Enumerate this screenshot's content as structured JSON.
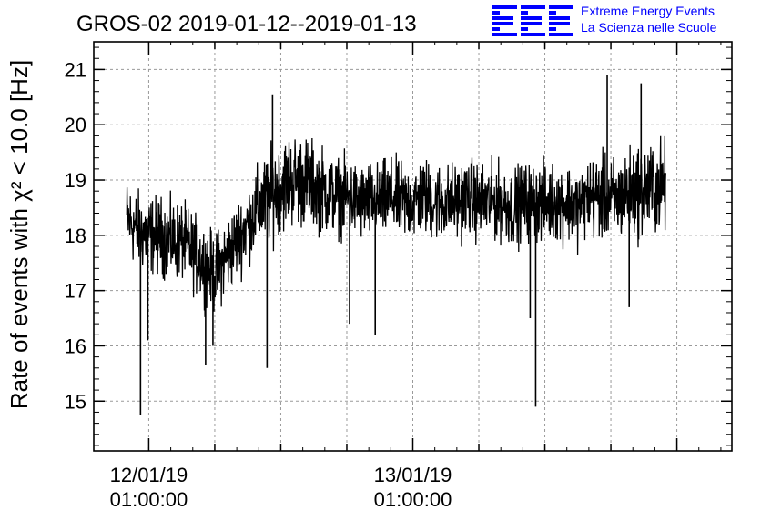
{
  "logo": {
    "mark": "EEE",
    "line1": "Extreme Energy Events",
    "line2": "La Scienza nelle Scuole",
    "color": "#0000ff"
  },
  "chart_data": {
    "type": "line",
    "title": "GROS-02 2019-01-12--2019-01-13",
    "xlabel": "",
    "ylabel": "Rate of events with χ² < 10.0 [Hz]",
    "xlim": [
      "2019-01-11 20:00",
      "2019-01-14 06:00"
    ],
    "ylim": [
      14.1,
      21.5
    ],
    "y_ticks": [
      15,
      16,
      17,
      18,
      19,
      20,
      21
    ],
    "x_ticks": [
      {
        "x": "2019-01-12 01:00",
        "label_date": "12/01/19",
        "label_time": "01:00:00"
      },
      {
        "x": "2019-01-13 01:00",
        "label_date": "13/01/19",
        "label_time": "01:00:00"
      }
    ],
    "grid": true,
    "line_color": "#000000",
    "series": [
      {
        "x": [
          "2019-01-11 23:00",
          "2019-01-12 00:00",
          "2019-01-12 01:00",
          "2019-01-12 02:00",
          "2019-01-12 03:00",
          "2019-01-12 04:00",
          "2019-01-12 05:00",
          "2019-01-12 06:00",
          "2019-01-12 07:00",
          "2019-01-12 08:00",
          "2019-01-12 09:00",
          "2019-01-12 10:00",
          "2019-01-12 11:00",
          "2019-01-12 12:00",
          "2019-01-12 13:00",
          "2019-01-12 14:00",
          "2019-01-12 15:00",
          "2019-01-12 16:00",
          "2019-01-12 17:00",
          "2019-01-12 18:00",
          "2019-01-12 19:00",
          "2019-01-12 20:00",
          "2019-01-12 21:00",
          "2019-01-12 22:00",
          "2019-01-12 23:00",
          "2019-01-13 00:00",
          "2019-01-13 01:00",
          "2019-01-13 02:00",
          "2019-01-13 03:00",
          "2019-01-13 04:00",
          "2019-01-13 05:00",
          "2019-01-13 06:00",
          "2019-01-13 07:00",
          "2019-01-13 08:00",
          "2019-01-13 09:00",
          "2019-01-13 10:00",
          "2019-01-13 11:00",
          "2019-01-13 12:00",
          "2019-01-13 13:00",
          "2019-01-13 14:00",
          "2019-01-13 15:00",
          "2019-01-13 16:00",
          "2019-01-13 17:00",
          "2019-01-13 18:00",
          "2019-01-13 19:00",
          "2019-01-13 20:00",
          "2019-01-13 21:00",
          "2019-01-13 22:00",
          "2019-01-13 23:59"
        ],
        "y": [
          18.3,
          18.1,
          18.0,
          18.0,
          17.9,
          17.9,
          17.7,
          17.5,
          17.3,
          17.6,
          17.9,
          18.2,
          18.5,
          18.7,
          18.9,
          19.0,
          19.0,
          18.9,
          18.8,
          18.7,
          18.7,
          18.6,
          18.6,
          18.6,
          18.7,
          18.6,
          18.6,
          18.7,
          18.6,
          18.6,
          18.6,
          18.7,
          18.6,
          18.6,
          18.6,
          18.5,
          18.6,
          18.6,
          18.6,
          18.6,
          18.6,
          18.5,
          18.7,
          18.7,
          18.6,
          18.7,
          18.8,
          18.8,
          18.9
        ],
        "spread": [
          0.5,
          0.5,
          0.5,
          0.5,
          0.5,
          0.5,
          0.5,
          0.5,
          0.5,
          0.5,
          0.5,
          0.5,
          0.55,
          0.6,
          0.6,
          0.6,
          0.6,
          0.55,
          0.55,
          0.5,
          0.5,
          0.5,
          0.5,
          0.5,
          0.5,
          0.5,
          0.5,
          0.5,
          0.5,
          0.5,
          0.5,
          0.5,
          0.5,
          0.5,
          0.5,
          0.5,
          0.5,
          0.5,
          0.5,
          0.5,
          0.5,
          0.5,
          0.5,
          0.55,
          0.55,
          0.55,
          0.6,
          0.6,
          0.6
        ],
        "spikes": [
          {
            "x": "2019-01-12 00:15",
            "y": 14.75
          },
          {
            "x": "2019-01-12 00:55",
            "y": 16.1
          },
          {
            "x": "2019-01-12 06:10",
            "y": 15.65
          },
          {
            "x": "2019-01-12 06:50",
            "y": 16.0
          },
          {
            "x": "2019-01-12 11:45",
            "y": 15.6
          },
          {
            "x": "2019-01-12 12:15",
            "y": 20.55
          },
          {
            "x": "2019-01-12 19:15",
            "y": 16.4
          },
          {
            "x": "2019-01-12 21:35",
            "y": 16.2
          },
          {
            "x": "2019-01-13 11:40",
            "y": 16.5
          },
          {
            "x": "2019-01-13 12:10",
            "y": 14.9
          },
          {
            "x": "2019-01-13 18:40",
            "y": 20.9
          },
          {
            "x": "2019-01-13 20:40",
            "y": 16.7
          },
          {
            "x": "2019-01-13 21:45",
            "y": 20.75
          }
        ]
      }
    ]
  }
}
